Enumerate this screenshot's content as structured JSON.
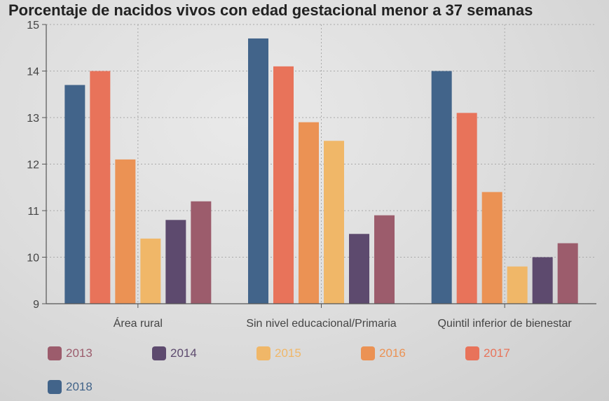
{
  "chart_data": {
    "type": "bar",
    "title": "Porcentaje de nacidos vivos con edad gestacional menor a 37 semanas",
    "categories": [
      "Área rural",
      "Sin nivel educacional/Primaria",
      "Quintil inferior de bienestar"
    ],
    "series": [
      {
        "name": "2018",
        "color": "#42648a",
        "values": [
          13.7,
          14.7,
          14.0
        ]
      },
      {
        "name": "2017",
        "color": "#e8735a",
        "values": [
          14.0,
          14.1,
          13.1
        ]
      },
      {
        "name": "2016",
        "color": "#eb9254",
        "values": [
          12.1,
          12.9,
          11.4
        ]
      },
      {
        "name": "2015",
        "color": "#f0b768",
        "values": [
          10.4,
          12.5,
          9.8
        ]
      },
      {
        "name": "2014",
        "color": "#5d4a6e",
        "values": [
          10.8,
          10.5,
          10.0
        ]
      },
      {
        "name": "2013",
        "color": "#9c5c6c",
        "values": [
          11.2,
          10.9,
          10.3
        ]
      }
    ],
    "ylim": [
      9,
      15
    ],
    "yticks": [
      9,
      10,
      11,
      12,
      13,
      14,
      15
    ],
    "grid": true,
    "legend_placement": "bottom",
    "legend": [
      {
        "name": "2013",
        "color": "#9c5c6c"
      },
      {
        "name": "2014",
        "color": "#5d4a6e"
      },
      {
        "name": "2015",
        "color": "#f0b768"
      },
      {
        "name": "2016",
        "color": "#eb9254"
      },
      {
        "name": "2017",
        "color": "#e8735a"
      },
      {
        "name": "2018",
        "color": "#42648a"
      }
    ]
  }
}
